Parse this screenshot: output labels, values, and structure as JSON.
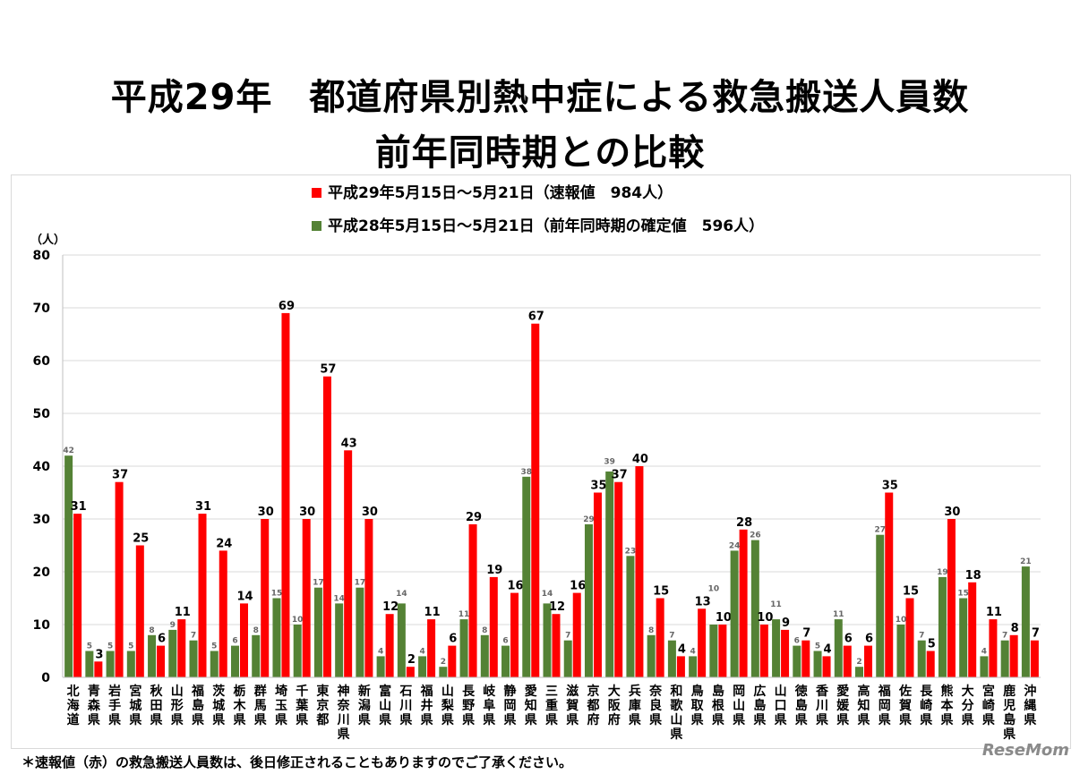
{
  "title_line1": "平成29年　都道府県別熱中症による救急搬送人員数",
  "title_line2": "前年同時期との比較",
  "footnote": "＊速報値（赤）の救急搬送人員数は、後日修正されることもありますのでご了承ください。",
  "logo": "ReseMom",
  "colors": {
    "current": "#ff0000",
    "previous": "#548235"
  },
  "chart_data": {
    "type": "bar",
    "ylabel": "（人）",
    "ylim": [
      0,
      80
    ],
    "yticks": [
      0,
      10,
      20,
      30,
      40,
      50,
      60,
      70,
      80
    ],
    "grid": true,
    "legend_placement": "top-center",
    "categories": [
      "北海道",
      "青森県",
      "岩手県",
      "宮城県",
      "秋田県",
      "山形県",
      "福島県",
      "茨城県",
      "栃木県",
      "群馬県",
      "埼玉県",
      "千葉県",
      "東京都",
      "神奈川県",
      "新潟県",
      "富山県",
      "石川県",
      "福井県",
      "山梨県",
      "長野県",
      "岐阜県",
      "静岡県",
      "愛知県",
      "三重県",
      "滋賀県",
      "京都府",
      "大阪府",
      "兵庫県",
      "奈良県",
      "和歌山県",
      "鳥取県",
      "島根県",
      "岡山県",
      "広島県",
      "山口県",
      "徳島県",
      "香川県",
      "愛媛県",
      "高知県",
      "福岡県",
      "佐賀県",
      "長崎県",
      "熊本県",
      "大分県",
      "宮崎県",
      "鹿児島県",
      "沖縄県"
    ],
    "series": [
      {
        "name": "平成29年5月15日～5月21日（速報値　984人）",
        "color": "#ff0000",
        "values": [
          31,
          3,
          37,
          25,
          6,
          11,
          31,
          24,
          14,
          30,
          69,
          30,
          57,
          43,
          30,
          12,
          2,
          11,
          6,
          29,
          19,
          16,
          67,
          12,
          16,
          35,
          37,
          40,
          15,
          4,
          13,
          10,
          28,
          10,
          9,
          7,
          4,
          6,
          6,
          35,
          15,
          5,
          30,
          18,
          11,
          8,
          7
        ]
      },
      {
        "name": "平成28年5月15日～5月21日（前年同時期の確定値　596人）",
        "color": "#548235",
        "values": [
          42,
          5,
          5,
          5,
          8,
          9,
          7,
          5,
          6,
          8,
          15,
          10,
          17,
          14,
          17,
          4,
          14,
          4,
          2,
          11,
          8,
          6,
          38,
          14,
          7,
          29,
          39,
          23,
          8,
          7,
          4,
          10,
          24,
          26,
          11,
          6,
          5,
          11,
          2,
          27,
          10,
          7,
          19,
          15,
          4,
          7,
          21
        ]
      }
    ]
  }
}
